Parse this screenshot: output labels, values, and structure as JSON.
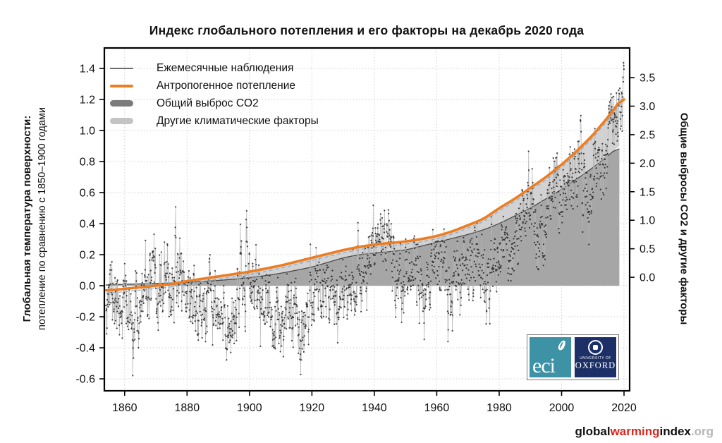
{
  "chart_data": {
    "type": "line",
    "title": "Индекс глобального потепления и его факторы на декабрь 2020 года",
    "xlabel": "",
    "ylabel_left_bold": "Глобальная температура поверхности:",
    "ylabel_left_sub": "потепление по сравнению с 1850–1900 годами",
    "ylabel_right": "Общие выбросы CO2 и другие факторы",
    "xlim": [
      1853.5,
      2021.8
    ],
    "ylim_left": [
      -0.677,
      1.532
    ],
    "ylim_right": [
      -1.99,
      4.02
    ],
    "x_ticks": [
      1860,
      1880,
      1900,
      1920,
      1940,
      1960,
      1980,
      2000,
      2020
    ],
    "y_ticks_left": [
      -0.6,
      -0.4,
      -0.2,
      0.0,
      0.2,
      0.4,
      0.6,
      0.8,
      1.0,
      1.2,
      1.4
    ],
    "y_ticks_right": [
      0.0,
      0.5,
      1.0,
      1.5,
      2.0,
      2.5,
      3.0,
      3.5
    ],
    "grid": true,
    "legend_position": "top-left-inside",
    "legend": [
      {
        "label": "Ежемесячные наблюдения",
        "type": "thin-line",
        "color": "#6e6e6e"
      },
      {
        "label": "Антропогенное потепление",
        "type": "line",
        "color": "#ED7D21"
      },
      {
        "label": "Общий выброс CO2",
        "type": "band",
        "color": "#7b7b7b"
      },
      {
        "label": "Другие климатические факторы",
        "type": "band",
        "color": "#c4c4c4"
      }
    ],
    "series": [
      {
        "name": "Антропогенное потепление",
        "role": "anthropogenic_total",
        "color": "#ED7D21",
        "years": [
          1850,
          1855,
          1860,
          1865,
          1870,
          1875,
          1880,
          1885,
          1890,
          1895,
          1900,
          1905,
          1910,
          1915,
          1920,
          1925,
          1930,
          1935,
          1940,
          1945,
          1950,
          1955,
          1960,
          1965,
          1970,
          1975,
          1980,
          1985,
          1990,
          1995,
          2000,
          2005,
          2010,
          2015,
          2018,
          2020
        ],
        "values": [
          -0.03,
          -0.03,
          -0.02,
          -0.01,
          0.0,
          0.01,
          0.03,
          0.045,
          0.06,
          0.075,
          0.09,
          0.11,
          0.13,
          0.155,
          0.18,
          0.205,
          0.23,
          0.25,
          0.265,
          0.275,
          0.285,
          0.3,
          0.32,
          0.35,
          0.39,
          0.43,
          0.5,
          0.56,
          0.63,
          0.7,
          0.78,
          0.87,
          0.97,
          1.09,
          1.17,
          1.23
        ]
      },
      {
        "name": "Общий выброс CO2",
        "role": "co2_contribution_area",
        "color": "#a6a6a6",
        "edge_color": "#4a4a4a",
        "years": [
          1850,
          1855,
          1860,
          1865,
          1870,
          1875,
          1880,
          1885,
          1890,
          1895,
          1900,
          1905,
          1910,
          1915,
          1920,
          1925,
          1930,
          1935,
          1940,
          1945,
          1950,
          1955,
          1960,
          1965,
          1970,
          1975,
          1980,
          1985,
          1990,
          1995,
          2000,
          2005,
          2010,
          2015,
          2018.5
        ],
        "values": [
          0.0,
          0.005,
          0.01,
          0.012,
          0.015,
          0.018,
          0.022,
          0.027,
          0.034,
          0.042,
          0.052,
          0.065,
          0.08,
          0.1,
          0.12,
          0.15,
          0.18,
          0.2,
          0.21,
          0.22,
          0.23,
          0.255,
          0.28,
          0.305,
          0.33,
          0.36,
          0.4,
          0.45,
          0.5,
          0.56,
          0.62,
          0.69,
          0.76,
          0.84,
          0.9
        ]
      },
      {
        "name": "Другие климатические факторы",
        "role": "other_factors_band",
        "color": "#d2d2d2",
        "note": "band between CO2 contribution and total anthropogenic warming"
      },
      {
        "name": "Ежемесячные наблюдения",
        "role": "monthly_observations",
        "dot_color": "#1c1c1c",
        "line_color": "#b3b3b3",
        "annual_anchor_years": [
          1850,
          1852,
          1855,
          1858,
          1860,
          1862,
          1865,
          1868,
          1870,
          1873,
          1875,
          1878,
          1880,
          1883,
          1885,
          1888,
          1890,
          1893,
          1895,
          1898,
          1900,
          1903,
          1906,
          1909,
          1911,
          1914,
          1917,
          1920,
          1923,
          1926,
          1929,
          1932,
          1935,
          1938,
          1941,
          1944,
          1947,
          1950,
          1953,
          1956,
          1959,
          1962,
          1964,
          1967,
          1970,
          1973,
          1976,
          1979,
          1982,
          1985,
          1988,
          1991,
          1993,
          1996,
          1998,
          2000,
          2003,
          2006,
          2008,
          2011,
          2014,
          2016,
          2018,
          2019.5,
          2020
        ],
        "annual_anchor_values": [
          -0.05,
          0.0,
          -0.02,
          -0.12,
          -0.08,
          -0.25,
          -0.15,
          -0.02,
          -0.05,
          0.0,
          -0.02,
          0.12,
          -0.05,
          -0.12,
          -0.18,
          -0.1,
          -0.22,
          -0.3,
          -0.15,
          0.0,
          0.05,
          -0.05,
          -0.18,
          -0.28,
          -0.3,
          -0.1,
          -0.25,
          -0.05,
          0.0,
          0.05,
          -0.1,
          0.05,
          0.05,
          0.15,
          0.32,
          0.35,
          0.1,
          0.0,
          0.15,
          -0.05,
          0.15,
          0.1,
          -0.05,
          0.05,
          0.15,
          0.25,
          0.0,
          0.25,
          0.25,
          0.25,
          0.45,
          0.5,
          0.3,
          0.45,
          0.7,
          0.5,
          0.7,
          0.75,
          0.6,
          0.7,
          0.85,
          1.2,
          1.0,
          1.2,
          1.28
        ],
        "monthly_noise_sd": 0.1,
        "monthly_noise_ar": 0.55,
        "seed": 11
      },
      {
        "name": "secondary-blue-guide",
        "role": "thin_blue_dashed_line_under_orange",
        "color": "#7aa6cf",
        "offset_from_anthropogenic": -0.018
      }
    ],
    "frame_color": "#000000",
    "grid_color": "#cfcfcf",
    "data_end_year_curves": 2020,
    "data_end_year_fills": 2018.5
  },
  "branding": {
    "part1": "global",
    "part2": "warming",
    "part3": "index",
    "part4": ".org"
  },
  "logos": {
    "eci_text": "eci",
    "oxford_line1": "UNIVERSITY OF",
    "oxford_line2": "OXFORD",
    "eci_bg": "#3E92A5",
    "oxford_bg": "#1C2F66"
  }
}
